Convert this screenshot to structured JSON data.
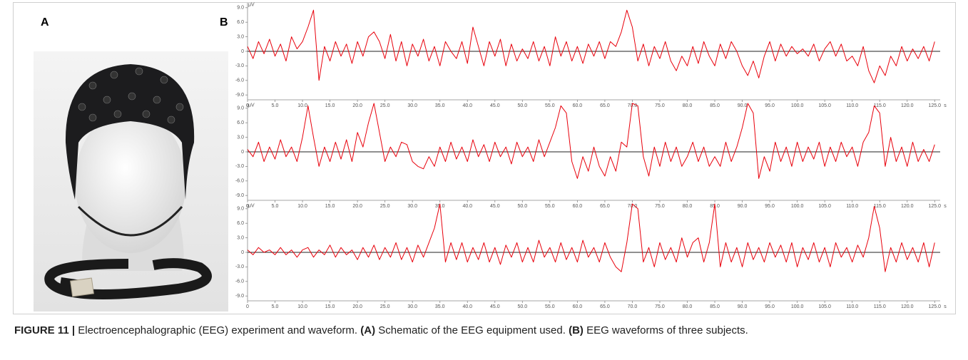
{
  "panels": {
    "a": "A",
    "b": "B"
  },
  "caption": {
    "segments": [
      "FIGURE 11 |",
      " Electroencephalographic (EEG) experiment and waveform. ",
      "(A)",
      " Schematic of the EEG equipment used. ",
      "(B)",
      " EEG waveforms of three subjects."
    ]
  },
  "chart_data": [
    {
      "type": "line",
      "x_unit": "s",
      "y_unit": "μV",
      "xlim": [
        0,
        126
      ],
      "ylim": [
        -10,
        10
      ],
      "zero_line": true,
      "color": "#e8000b",
      "yticks": [
        {
          "value": 9,
          "label": "9.0"
        },
        {
          "value": 6,
          "label": "6.0"
        },
        {
          "value": 3,
          "label": "3.0"
        },
        0,
        {
          "value": -3,
          "label": "-3.0"
        },
        {
          "value": -6,
          "label": "-6.0"
        },
        {
          "value": -9,
          "label": "-9.0"
        }
      ],
      "xticks": [
        0,
        {
          "value": 5,
          "label": "5.0"
        },
        {
          "value": 10,
          "label": "10.0"
        },
        {
          "value": 15,
          "label": "15.0"
        },
        {
          "value": 20,
          "label": "20.0"
        },
        {
          "value": 25,
          "label": "25.0"
        },
        {
          "value": 30,
          "label": "30.0"
        },
        {
          "value": 35,
          "label": "35.0"
        },
        {
          "value": 40,
          "label": "40.0"
        },
        {
          "value": 45,
          "label": "45.0"
        },
        {
          "value": 50,
          "label": "50.0"
        },
        {
          "value": 55,
          "label": "55.0"
        },
        {
          "value": 60,
          "label": "60.0"
        },
        {
          "value": 65,
          "label": "65.0"
        },
        {
          "value": 70,
          "label": "70.0"
        },
        {
          "value": 75,
          "label": "75.0"
        },
        {
          "value": 80,
          "label": "80.0"
        },
        {
          "value": 85,
          "label": "85.0"
        },
        {
          "value": 90,
          "label": "90.0"
        },
        {
          "value": 95,
          "label": "95.0"
        },
        {
          "value": 100,
          "label": "100.0"
        },
        {
          "value": 105,
          "label": "105.0"
        },
        {
          "value": 110,
          "label": "110.0"
        },
        {
          "value": 115,
          "label": "115.0"
        },
        {
          "value": 120,
          "label": "120.0"
        },
        {
          "value": 125,
          "label": "125.0"
        }
      ],
      "x": [
        0,
        1,
        2,
        3,
        4,
        5,
        6,
        7,
        8,
        9,
        10,
        11,
        12,
        13,
        14,
        15,
        16,
        17,
        18,
        19,
        20,
        21,
        22,
        23,
        24,
        25,
        26,
        27,
        28,
        29,
        30,
        31,
        32,
        33,
        34,
        35,
        36,
        37,
        38,
        39,
        40,
        41,
        42,
        43,
        44,
        45,
        46,
        47,
        48,
        49,
        50,
        51,
        52,
        53,
        54,
        55,
        56,
        57,
        58,
        59,
        60,
        61,
        62,
        63,
        64,
        65,
        66,
        67,
        68,
        69,
        70,
        71,
        72,
        73,
        74,
        75,
        76,
        77,
        78,
        79,
        80,
        81,
        82,
        83,
        84,
        85,
        86,
        87,
        88,
        89,
        90,
        91,
        92,
        93,
        94,
        95,
        96,
        97,
        98,
        99,
        100,
        101,
        102,
        103,
        104,
        105,
        106,
        107,
        108,
        109,
        110,
        111,
        112,
        113,
        114,
        115,
        116,
        117,
        118,
        119,
        120,
        121,
        122,
        123,
        124,
        125
      ],
      "values": [
        1,
        -1.5,
        2,
        -0.5,
        2.5,
        -1,
        1.5,
        -2,
        3,
        0.5,
        2,
        5,
        8.5,
        -6,
        1,
        -2,
        2,
        -1,
        1.5,
        -2.5,
        2,
        -1,
        3,
        4,
        2,
        -1.5,
        3.5,
        -2,
        2,
        -3,
        1.5,
        -1,
        2.5,
        -2,
        1,
        -3,
        2,
        0,
        -1.5,
        2,
        -2.5,
        5,
        1,
        -3,
        2,
        -1,
        2.5,
        -3,
        1.5,
        -2,
        0.5,
        -1.5,
        2,
        -2,
        1,
        -3,
        3,
        -1,
        2,
        -2,
        1,
        -2.5,
        1.5,
        -1,
        2,
        -1.5,
        2,
        1,
        4,
        8.5,
        5,
        -2,
        1.5,
        -3,
        1,
        -1.5,
        2,
        -2,
        -4,
        -1,
        -3,
        1,
        -2.5,
        2,
        -1,
        -3,
        1.5,
        -1.5,
        2,
        0,
        -3,
        -5,
        -2,
        -5.5,
        -1,
        2,
        -2,
        1.5,
        -1,
        1,
        -0.5,
        0.5,
        -1,
        1.5,
        -2,
        0.5,
        2,
        -1,
        1.5,
        -2,
        -1,
        -3,
        1,
        -4,
        -6.5,
        -3,
        -5,
        -1,
        -3,
        1,
        -2,
        0.5,
        -1.5,
        1,
        -2,
        2
      ]
    },
    {
      "type": "line",
      "x_unit": "s",
      "y_unit": "μV",
      "xlim": [
        0,
        126
      ],
      "ylim": [
        -10,
        10
      ],
      "zero_line": true,
      "color": "#e8000b",
      "yticks": [
        {
          "value": 9,
          "label": "9.0"
        },
        {
          "value": 6,
          "label": "6.0"
        },
        {
          "value": 3,
          "label": "3.0"
        },
        0,
        {
          "value": -3,
          "label": "-3.0"
        },
        {
          "value": -6,
          "label": "-6.0"
        },
        {
          "value": -9,
          "label": "-9.0"
        }
      ],
      "xticks": [
        0,
        {
          "value": 5,
          "label": "5.0"
        },
        {
          "value": 10,
          "label": "10.0"
        },
        {
          "value": 15,
          "label": "15.0"
        },
        {
          "value": 20,
          "label": "20.0"
        },
        {
          "value": 25,
          "label": "25.0"
        },
        {
          "value": 30,
          "label": "30.0"
        },
        {
          "value": 35,
          "label": "35.0"
        },
        {
          "value": 40,
          "label": "40.0"
        },
        {
          "value": 45,
          "label": "45.0"
        },
        {
          "value": 50,
          "label": "50.0"
        },
        {
          "value": 55,
          "label": "55.0"
        },
        {
          "value": 60,
          "label": "60.0"
        },
        {
          "value": 65,
          "label": "65.0"
        },
        {
          "value": 70,
          "label": "70.0"
        },
        {
          "value": 75,
          "label": "75.0"
        },
        {
          "value": 80,
          "label": "80.0"
        },
        {
          "value": 85,
          "label": "85.0"
        },
        {
          "value": 90,
          "label": "90.0"
        },
        {
          "value": 95,
          "label": "95.0"
        },
        {
          "value": 100,
          "label": "100.0"
        },
        {
          "value": 105,
          "label": "105.0"
        },
        {
          "value": 110,
          "label": "110.0"
        },
        {
          "value": 115,
          "label": "115.0"
        },
        {
          "value": 120,
          "label": "120.0"
        },
        {
          "value": 125,
          "label": "125.0"
        }
      ],
      "x": [
        0,
        1,
        2,
        3,
        4,
        5,
        6,
        7,
        8,
        9,
        10,
        11,
        12,
        13,
        14,
        15,
        16,
        17,
        18,
        19,
        20,
        21,
        22,
        23,
        24,
        25,
        26,
        27,
        28,
        29,
        30,
        31,
        32,
        33,
        34,
        35,
        36,
        37,
        38,
        39,
        40,
        41,
        42,
        43,
        44,
        45,
        46,
        47,
        48,
        49,
        50,
        51,
        52,
        53,
        54,
        55,
        56,
        57,
        58,
        59,
        60,
        61,
        62,
        63,
        64,
        65,
        66,
        67,
        68,
        69,
        70,
        71,
        72,
        73,
        74,
        75,
        76,
        77,
        78,
        79,
        80,
        81,
        82,
        83,
        84,
        85,
        86,
        87,
        88,
        89,
        90,
        91,
        92,
        93,
        94,
        95,
        96,
        97,
        98,
        99,
        100,
        101,
        102,
        103,
        104,
        105,
        106,
        107,
        108,
        109,
        110,
        111,
        112,
        113,
        114,
        115,
        116,
        117,
        118,
        119,
        120,
        121,
        122,
        123,
        124,
        125
      ],
      "values": [
        0.5,
        -1,
        2,
        -2,
        1,
        -1.5,
        2.5,
        -1,
        1,
        -2,
        3,
        9.5,
        3,
        -3,
        1,
        -2,
        2,
        -1.5,
        2.5,
        -2,
        4,
        1,
        6,
        10,
        4,
        -2,
        1,
        -1,
        2,
        1.5,
        -2,
        -3,
        -3.5,
        -1,
        -3,
        1,
        -2,
        2,
        -1.5,
        1,
        -2,
        2.5,
        -1,
        1.5,
        -2,
        2,
        -1,
        1,
        -2.5,
        2,
        -1,
        1,
        -2,
        2.5,
        -1,
        2,
        5,
        9.5,
        8,
        -2,
        -5.5,
        -1,
        -4,
        1,
        -3,
        -5,
        -1,
        -4,
        2,
        1,
        10,
        9.5,
        -1,
        -5,
        1,
        -3,
        2,
        -2,
        1,
        -3,
        -1,
        2,
        -2,
        1,
        -3,
        -1,
        -3,
        2,
        -2,
        1,
        5,
        10,
        8,
        -5.5,
        -1,
        -4,
        2,
        -2,
        1,
        -3,
        2,
        -2,
        1,
        -1.5,
        2,
        -3,
        1,
        -2,
        2,
        -1,
        1,
        -3,
        2,
        4,
        9.5,
        8,
        -3,
        3,
        -2,
        1,
        -3,
        2,
        -2,
        0.5,
        -2,
        1.5
      ]
    },
    {
      "type": "line",
      "x_unit": "s",
      "y_unit": "μV",
      "xlim": [
        0,
        126
      ],
      "ylim": [
        -10,
        10
      ],
      "zero_line": true,
      "color": "#e8000b",
      "yticks": [
        {
          "value": 9,
          "label": "9.0"
        },
        {
          "value": 6,
          "label": "6.0"
        },
        {
          "value": 3,
          "label": "3.0"
        },
        0,
        {
          "value": -3,
          "label": "-3.0"
        },
        {
          "value": -6,
          "label": "-6.0"
        },
        {
          "value": -9,
          "label": "-9.0"
        }
      ],
      "xticks": [
        0,
        {
          "value": 5,
          "label": "5.0"
        },
        {
          "value": 10,
          "label": "10.0"
        },
        {
          "value": 15,
          "label": "15.0"
        },
        {
          "value": 20,
          "label": "20.0"
        },
        {
          "value": 25,
          "label": "25.0"
        },
        {
          "value": 30,
          "label": "30.0"
        },
        {
          "value": 35,
          "label": "35.0"
        },
        {
          "value": 40,
          "label": "40.0"
        },
        {
          "value": 45,
          "label": "45.0"
        },
        {
          "value": 50,
          "label": "50.0"
        },
        {
          "value": 55,
          "label": "55.0"
        },
        {
          "value": 60,
          "label": "60.0"
        },
        {
          "value": 65,
          "label": "65.0"
        },
        {
          "value": 70,
          "label": "70.0"
        },
        {
          "value": 75,
          "label": "75.0"
        },
        {
          "value": 80,
          "label": "80.0"
        },
        {
          "value": 85,
          "label": "85.0"
        },
        {
          "value": 90,
          "label": "90.0"
        },
        {
          "value": 95,
          "label": "95.0"
        },
        {
          "value": 100,
          "label": "100.0"
        },
        {
          "value": 105,
          "label": "105.0"
        },
        {
          "value": 110,
          "label": "110.0"
        },
        {
          "value": 115,
          "label": "115.0"
        },
        {
          "value": 120,
          "label": "120.0"
        },
        {
          "value": 125,
          "label": "125.0"
        }
      ],
      "x": [
        0,
        1,
        2,
        3,
        4,
        5,
        6,
        7,
        8,
        9,
        10,
        11,
        12,
        13,
        14,
        15,
        16,
        17,
        18,
        19,
        20,
        21,
        22,
        23,
        24,
        25,
        26,
        27,
        28,
        29,
        30,
        31,
        32,
        33,
        34,
        35,
        36,
        37,
        38,
        39,
        40,
        41,
        42,
        43,
        44,
        45,
        46,
        47,
        48,
        49,
        50,
        51,
        52,
        53,
        54,
        55,
        56,
        57,
        58,
        59,
        60,
        61,
        62,
        63,
        64,
        65,
        66,
        67,
        68,
        69,
        70,
        71,
        72,
        73,
        74,
        75,
        76,
        77,
        78,
        79,
        80,
        81,
        82,
        83,
        84,
        85,
        86,
        87,
        88,
        89,
        90,
        91,
        92,
        93,
        94,
        95,
        96,
        97,
        98,
        99,
        100,
        101,
        102,
        103,
        104,
        105,
        106,
        107,
        108,
        109,
        110,
        111,
        112,
        113,
        114,
        115,
        116,
        117,
        118,
        119,
        120,
        121,
        122,
        123,
        124,
        125
      ],
      "values": [
        0.5,
        -0.5,
        1,
        0,
        0.5,
        -0.5,
        1,
        -0.5,
        0.5,
        -1,
        0.5,
        1,
        -1,
        0.5,
        -0.5,
        1.5,
        -1,
        1,
        -0.5,
        0.5,
        -1.5,
        1,
        -1,
        1.5,
        -1.5,
        1,
        -1,
        2,
        -1.5,
        1,
        -2,
        1.5,
        -1,
        2,
        5,
        10,
        -2,
        2,
        -1.5,
        2,
        -2,
        1,
        -1.5,
        2,
        -2,
        1,
        -2.5,
        1.5,
        -1,
        2,
        -2,
        1,
        -2,
        2.5,
        -1,
        1,
        -2,
        2,
        -1.5,
        1,
        -2,
        2.5,
        -1,
        1,
        -2,
        2,
        -1,
        -3,
        -4,
        2,
        10,
        9,
        -2,
        1,
        -3,
        2,
        -1.5,
        1,
        -2,
        3,
        -1,
        2,
        3,
        -2,
        2,
        10,
        -3,
        2,
        -2,
        1,
        -3,
        2,
        -1.5,
        1,
        -2,
        2,
        -1,
        1.5,
        -2,
        2,
        -3,
        1,
        -1.5,
        2,
        -2,
        1,
        -3,
        2,
        -1,
        1,
        -2,
        1.5,
        -1,
        3,
        9.5,
        5,
        -4,
        1,
        -2,
        2,
        -1.5,
        1,
        -2,
        2,
        -3,
        2
      ]
    }
  ]
}
